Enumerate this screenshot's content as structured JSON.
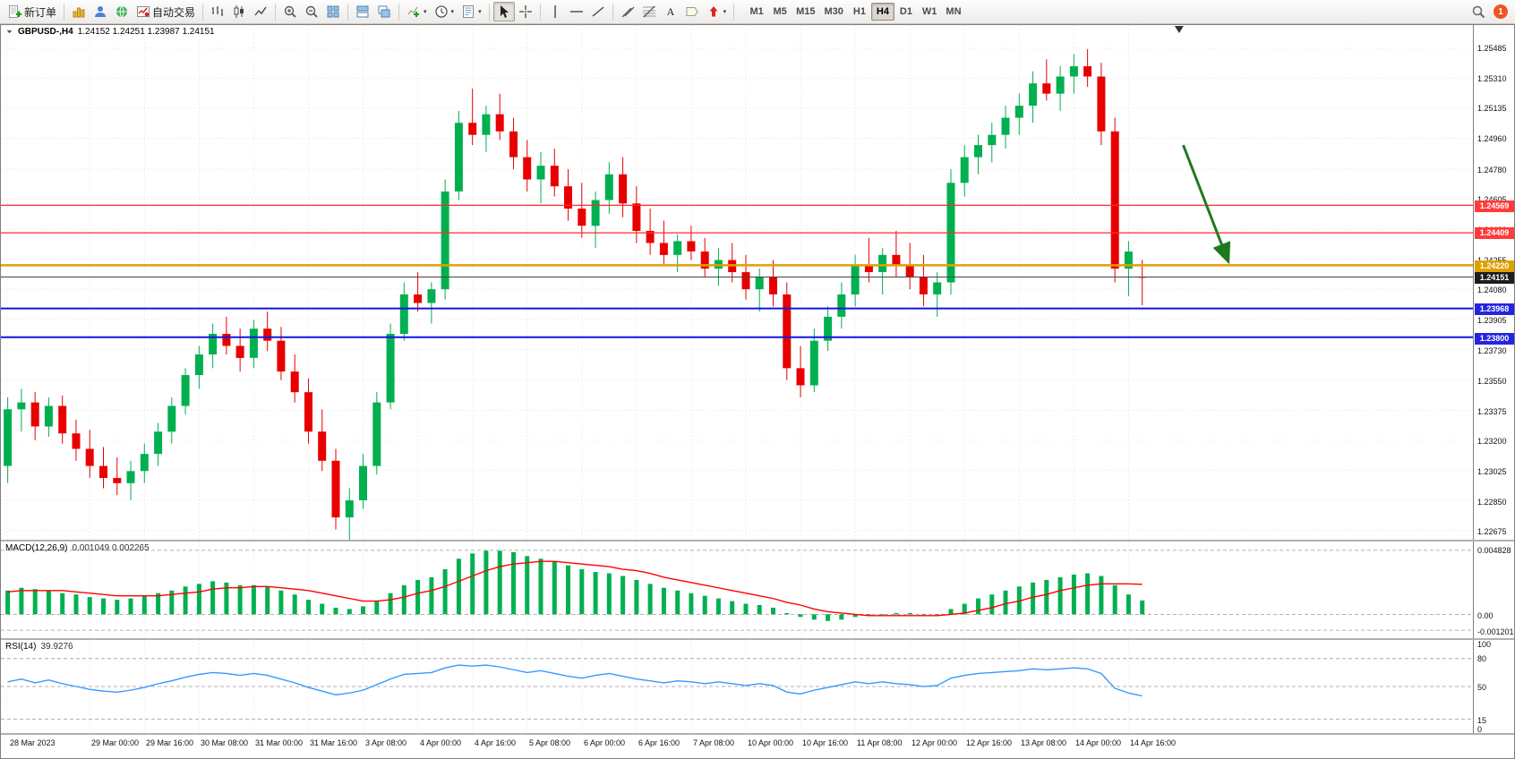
{
  "toolbar": {
    "groups": [
      {
        "items": [
          {
            "name": "new-order-button",
            "icon": "new-order-icon",
            "label": "新订单"
          }
        ]
      },
      {
        "items": [
          {
            "name": "charts-button",
            "icon": "gold-chart-icon"
          },
          {
            "name": "profile-button",
            "icon": "profile-icon"
          },
          {
            "name": "community-button",
            "icon": "globe-icon"
          },
          {
            "name": "autotrade-button",
            "icon": "autotrade-icon",
            "label": "自动交易"
          }
        ]
      },
      {
        "items": [
          {
            "name": "bar-chart-button",
            "icon": "bar-chart-icon"
          },
          {
            "name": "candle-chart-button",
            "icon": "candle-chart-icon"
          },
          {
            "name": "line-chart-button",
            "icon": "line-chart-icon"
          }
        ]
      },
      {
        "items": [
          {
            "name": "zoom-in-button",
            "icon": "zoom-in-icon"
          },
          {
            "name": "zoom-out-button",
            "icon": "zoom-out-icon"
          },
          {
            "name": "tile-windows-button",
            "icon": "tile-windows-icon"
          }
        ]
      },
      {
        "items": [
          {
            "name": "auto-arrange-button",
            "icon": "arrange-icon"
          },
          {
            "name": "cascade-button",
            "icon": "cascade-icon"
          }
        ]
      },
      {
        "items": [
          {
            "name": "indicators-button",
            "icon": "indicators-icon",
            "dropdown": true
          },
          {
            "name": "periods-button",
            "icon": "clock-icon",
            "dropdown": true
          },
          {
            "name": "templates-button",
            "icon": "template-icon",
            "dropdown": true
          }
        ]
      },
      {
        "items": [
          {
            "name": "cursor-button",
            "icon": "cursor-icon",
            "active": true
          },
          {
            "name": "crosshair-button",
            "icon": "crosshair-icon"
          }
        ]
      },
      {
        "items": [
          {
            "name": "vline-button",
            "icon": "vline-icon"
          },
          {
            "name": "hline-button",
            "icon": "hline-icon"
          },
          {
            "name": "trendline-button",
            "icon": "trendline-icon"
          }
        ]
      },
      {
        "items": [
          {
            "name": "channel-button",
            "icon": "channel-icon"
          },
          {
            "name": "fibo-button",
            "icon": "fibo-icon"
          },
          {
            "name": "text-button",
            "icon": "text-icon"
          },
          {
            "name": "label-button",
            "icon": "label-icon"
          },
          {
            "name": "arrows-button",
            "icon": "arrow-stamp-icon",
            "dropdown": true
          }
        ]
      }
    ],
    "timeframes": [
      "M1",
      "M5",
      "M15",
      "M30",
      "H1",
      "H4",
      "D1",
      "W1",
      "MN"
    ],
    "active_timeframe": "H4",
    "notification_count": "1"
  },
  "chart_data": [
    {
      "type": "candlestick",
      "title": "GBPUSD-,H4",
      "ohlc_text": "1.24152 1.24251 1.23987 1.24151",
      "up_color": "#00B050",
      "down_color": "#E80000",
      "ylim": [
        1.2262,
        1.2562
      ],
      "y_ticks": [
        "1.25485",
        "1.25310",
        "1.25135",
        "1.24960",
        "1.24780",
        "1.24605",
        "1.24430",
        "1.24255",
        "1.24080",
        "1.23905",
        "1.23730",
        "1.23550",
        "1.23375",
        "1.23200",
        "1.23025",
        "1.22850",
        "1.22675"
      ],
      "x_labels": [
        "28 Mar 2023",
        "29 Mar 00:00",
        "29 Mar 16:00",
        "30 Mar 08:00",
        "31 Mar 00:00",
        "31 Mar 16:00",
        "3 Apr 08:00",
        "4 Apr 00:00",
        "4 Apr 16:00",
        "5 Apr 08:00",
        "6 Apr 00:00",
        "6 Apr 16:00",
        "7 Apr 08:00",
        "10 Apr 00:00",
        "10 Apr 16:00",
        "11 Apr 08:00",
        "12 Apr 00:00",
        "12 Apr 16:00",
        "13 Apr 08:00",
        "14 Apr 00:00",
        "14 Apr 16:00"
      ],
      "x_label_indices": [
        0,
        6,
        10,
        14,
        18,
        22,
        26,
        30,
        34,
        38,
        42,
        46,
        50,
        54,
        58,
        62,
        66,
        70,
        74,
        78,
        82
      ],
      "ohlc": [
        [
          1.2305,
          1.2345,
          1.2295,
          1.2338
        ],
        [
          1.2338,
          1.235,
          1.2325,
          1.2342
        ],
        [
          1.2342,
          1.2348,
          1.232,
          1.2328
        ],
        [
          1.2328,
          1.2345,
          1.2322,
          1.234
        ],
        [
          1.234,
          1.2346,
          1.2318,
          1.2324
        ],
        [
          1.2324,
          1.2332,
          1.2308,
          1.2315
        ],
        [
          1.2315,
          1.2326,
          1.2298,
          1.2305
        ],
        [
          1.2305,
          1.2316,
          1.2292,
          1.2298
        ],
        [
          1.2298,
          1.231,
          1.2288,
          1.2295
        ],
        [
          1.2295,
          1.2308,
          1.2285,
          1.2302
        ],
        [
          1.2302,
          1.2318,
          1.2295,
          1.2312
        ],
        [
          1.2312,
          1.233,
          1.2305,
          1.2325
        ],
        [
          1.2325,
          1.2345,
          1.2318,
          1.234
        ],
        [
          1.234,
          1.2362,
          1.2335,
          1.2358
        ],
        [
          1.2358,
          1.2375,
          1.235,
          1.237
        ],
        [
          1.237,
          1.2388,
          1.2362,
          1.2382
        ],
        [
          1.2382,
          1.2392,
          1.237,
          1.2375
        ],
        [
          1.2375,
          1.2385,
          1.236,
          1.2368
        ],
        [
          1.2368,
          1.239,
          1.2362,
          1.2385
        ],
        [
          1.2385,
          1.2395,
          1.2372,
          1.2378
        ],
        [
          1.2378,
          1.2386,
          1.2355,
          1.236
        ],
        [
          1.236,
          1.237,
          1.2342,
          1.2348
        ],
        [
          1.2348,
          1.2356,
          1.2318,
          1.2325
        ],
        [
          1.2325,
          1.2338,
          1.2302,
          1.2308
        ],
        [
          1.2308,
          1.2315,
          1.2268,
          1.2275
        ],
        [
          1.2275,
          1.2292,
          1.2255,
          1.2285
        ],
        [
          1.2285,
          1.2312,
          1.228,
          1.2305
        ],
        [
          1.2305,
          1.2348,
          1.23,
          1.2342
        ],
        [
          1.2342,
          1.2388,
          1.2338,
          1.2382
        ],
        [
          1.2382,
          1.2412,
          1.2378,
          1.2405
        ],
        [
          1.2405,
          1.2418,
          1.2395,
          1.24
        ],
        [
          1.24,
          1.2412,
          1.2388,
          1.2408
        ],
        [
          1.2408,
          1.2472,
          1.2402,
          1.2465
        ],
        [
          1.2465,
          1.2512,
          1.246,
          1.2505
        ],
        [
          1.2505,
          1.2525,
          1.2492,
          1.2498
        ],
        [
          1.2498,
          1.2515,
          1.2488,
          1.251
        ],
        [
          1.251,
          1.2522,
          1.2495,
          1.25
        ],
        [
          1.25,
          1.2508,
          1.2478,
          1.2485
        ],
        [
          1.2485,
          1.2495,
          1.2465,
          1.2472
        ],
        [
          1.2472,
          1.2488,
          1.2458,
          1.248
        ],
        [
          1.248,
          1.249,
          1.2462,
          1.2468
        ],
        [
          1.2468,
          1.2478,
          1.2448,
          1.2455
        ],
        [
          1.2455,
          1.247,
          1.2438,
          1.2445
        ],
        [
          1.2445,
          1.2465,
          1.2432,
          1.246
        ],
        [
          1.246,
          1.2482,
          1.2452,
          1.2475
        ],
        [
          1.2475,
          1.2485,
          1.245,
          1.2458
        ],
        [
          1.2458,
          1.2468,
          1.2435,
          1.2442
        ],
        [
          1.2442,
          1.2455,
          1.2428,
          1.2435
        ],
        [
          1.2435,
          1.2448,
          1.2422,
          1.2428
        ],
        [
          1.2428,
          1.244,
          1.2418,
          1.2436
        ],
        [
          1.2436,
          1.2445,
          1.2425,
          1.243
        ],
        [
          1.243,
          1.2438,
          1.2415,
          1.242
        ],
        [
          1.242,
          1.2432,
          1.241,
          1.2425
        ],
        [
          1.2425,
          1.2435,
          1.2412,
          1.2418
        ],
        [
          1.2418,
          1.2428,
          1.2402,
          1.2408
        ],
        [
          1.2408,
          1.242,
          1.2395,
          1.2415
        ],
        [
          1.2415,
          1.2425,
          1.2398,
          1.2405
        ],
        [
          1.2405,
          1.2412,
          1.2355,
          1.2362
        ],
        [
          1.2362,
          1.2375,
          1.2345,
          1.2352
        ],
        [
          1.2352,
          1.2385,
          1.2348,
          1.2378
        ],
        [
          1.2378,
          1.2398,
          1.2372,
          1.2392
        ],
        [
          1.2392,
          1.2412,
          1.2385,
          1.2405
        ],
        [
          1.2405,
          1.2428,
          1.2398,
          1.2422
        ],
        [
          1.2422,
          1.2438,
          1.2412,
          1.2418
        ],
        [
          1.2418,
          1.2432,
          1.2405,
          1.2428
        ],
        [
          1.2428,
          1.2442,
          1.2415,
          1.2422
        ],
        [
          1.2422,
          1.2435,
          1.2408,
          1.2415
        ],
        [
          1.2415,
          1.2428,
          1.2398,
          1.2405
        ],
        [
          1.2405,
          1.2418,
          1.2392,
          1.2412
        ],
        [
          1.2412,
          1.2478,
          1.2405,
          1.247
        ],
        [
          1.247,
          1.2492,
          1.2462,
          1.2485
        ],
        [
          1.2485,
          1.2498,
          1.2475,
          1.2492
        ],
        [
          1.2492,
          1.2505,
          1.2482,
          1.2498
        ],
        [
          1.2498,
          1.2515,
          1.249,
          1.2508
        ],
        [
          1.2508,
          1.2522,
          1.2498,
          1.2515
        ],
        [
          1.2515,
          1.2535,
          1.2505,
          1.2528
        ],
        [
          1.2528,
          1.2542,
          1.2518,
          1.2522
        ],
        [
          1.2522,
          1.2538,
          1.2512,
          1.2532
        ],
        [
          1.2532,
          1.2545,
          1.2522,
          1.2538
        ],
        [
          1.2538,
          1.2548,
          1.2526,
          1.2532
        ],
        [
          1.2532,
          1.254,
          1.2492,
          1.25
        ],
        [
          1.25,
          1.2508,
          1.2412,
          1.242
        ],
        [
          1.242,
          1.2436,
          1.2404,
          1.243
        ],
        [
          1.24152,
          1.24251,
          1.23987,
          1.24151
        ]
      ],
      "hlines": [
        {
          "price": 1.24569,
          "label": "1.24569",
          "color": "#FF2A2A",
          "label_bg": "#FF3A3A",
          "width": 1.2
        },
        {
          "price": 1.24409,
          "label": "1.24409",
          "color": "#FF2A2A",
          "label_bg": "#FF3A3A",
          "width": 1.2
        },
        {
          "price": 1.2422,
          "label": "1.24220",
          "color": "#E0A000",
          "label_bg": "#E0A000",
          "width": 2.5
        },
        {
          "price": 1.24151,
          "label": "1.24151",
          "color": "#444444",
          "label_bg": "#1d1d1d",
          "width": 1
        },
        {
          "price": 1.23968,
          "label": "1.23968",
          "color": "#1515E0",
          "label_bg": "#2525E0",
          "width": 2
        },
        {
          "price": 1.238,
          "label": "1.23800",
          "color": "#1515E0",
          "label_bg": "#2525E0",
          "width": 2
        }
      ],
      "arrow": {
        "i1": 86.0,
        "p1": 1.2492,
        "i2": 89.3,
        "p2": 1.2424,
        "color": "#1F7A1F"
      }
    },
    {
      "type": "bar",
      "name": "MACD",
      "label": "MACD(12,26,9)",
      "values_text": "0.001049 0.002265",
      "bar_color": "#00B050",
      "signal_color": "#FF0000",
      "ylim": [
        -0.0018,
        0.0055
      ],
      "y_ticks": [
        "0.004828",
        "0.00",
        "-0.001201"
      ],
      "levels": [
        0.004828,
        0,
        -0.001201
      ],
      "values": [
        0.0018,
        0.002,
        0.0019,
        0.0018,
        0.0016,
        0.0015,
        0.0013,
        0.0012,
        0.0011,
        0.0012,
        0.0014,
        0.0016,
        0.0018,
        0.0021,
        0.0023,
        0.0025,
        0.0024,
        0.0022,
        0.0022,
        0.0021,
        0.0018,
        0.0015,
        0.0011,
        0.0008,
        0.0005,
        0.0004,
        0.0006,
        0.001,
        0.0016,
        0.0022,
        0.0026,
        0.0028,
        0.0034,
        0.0042,
        0.0046,
        0.0048,
        0.0048,
        0.0047,
        0.0044,
        0.0042,
        0.004,
        0.0037,
        0.0034,
        0.0032,
        0.0031,
        0.0029,
        0.0026,
        0.0023,
        0.002,
        0.0018,
        0.0016,
        0.0014,
        0.0012,
        0.001,
        0.0008,
        0.0007,
        0.0005,
        0.0001,
        -0.0002,
        -0.0004,
        -0.0005,
        -0.0004,
        -0.0002,
        -0.0001,
        0.0,
        0.0001,
        0.0001,
        0.0,
        0.0,
        0.0004,
        0.0008,
        0.0012,
        0.0015,
        0.0018,
        0.0021,
        0.0024,
        0.0026,
        0.0028,
        0.003,
        0.0031,
        0.0029,
        0.0022,
        0.0015,
        0.001049
      ],
      "signal": [
        0.0017,
        0.0018,
        0.0018,
        0.0018,
        0.0018,
        0.0017,
        0.0016,
        0.0015,
        0.0014,
        0.0014,
        0.0014,
        0.0014,
        0.0015,
        0.0016,
        0.0017,
        0.0019,
        0.002,
        0.002,
        0.0021,
        0.0021,
        0.002,
        0.0019,
        0.0018,
        0.0016,
        0.0014,
        0.0012,
        0.001,
        0.001,
        0.0011,
        0.0013,
        0.0016,
        0.0018,
        0.0021,
        0.0025,
        0.0029,
        0.0033,
        0.0036,
        0.0038,
        0.0039,
        0.004,
        0.004,
        0.0039,
        0.0038,
        0.0037,
        0.0036,
        0.0034,
        0.0033,
        0.0031,
        0.0028,
        0.0026,
        0.0024,
        0.0022,
        0.002,
        0.0018,
        0.0016,
        0.0014,
        0.0012,
        0.0009,
        0.0007,
        0.0004,
        0.0002,
        0.0001,
        0.0,
        -0.0001,
        -0.0001,
        -0.0001,
        -0.0001,
        -0.0001,
        -0.0001,
        0.0,
        0.0001,
        0.0003,
        0.0005,
        0.0008,
        0.001,
        0.0013,
        0.0015,
        0.0018,
        0.002,
        0.0022,
        0.0023,
        0.0023,
        0.0023,
        0.002265
      ]
    },
    {
      "type": "line",
      "name": "RSI",
      "label": "RSI(14)",
      "value_text": "39.9276",
      "line_color": "#3399FF",
      "ylim": [
        0,
        100
      ],
      "y_ticks": [
        "100",
        "80",
        "50",
        "15",
        "0"
      ],
      "levels": [
        80,
        50,
        15
      ],
      "values": [
        55,
        58,
        54,
        57,
        53,
        50,
        47,
        45,
        44,
        46,
        49,
        53,
        56,
        60,
        63,
        65,
        64,
        62,
        64,
        62,
        58,
        54,
        49,
        45,
        41,
        43,
        46,
        52,
        58,
        63,
        64,
        65,
        70,
        73,
        72,
        73,
        71,
        68,
        65,
        67,
        64,
        61,
        59,
        62,
        64,
        61,
        58,
        56,
        54,
        56,
        55,
        53,
        55,
        53,
        51,
        53,
        51,
        44,
        42,
        46,
        49,
        52,
        55,
        53,
        55,
        53,
        52,
        50,
        51,
        59,
        62,
        64,
        65,
        66,
        67,
        69,
        68,
        69,
        70,
        69,
        64,
        48,
        43,
        39.93
      ]
    }
  ]
}
